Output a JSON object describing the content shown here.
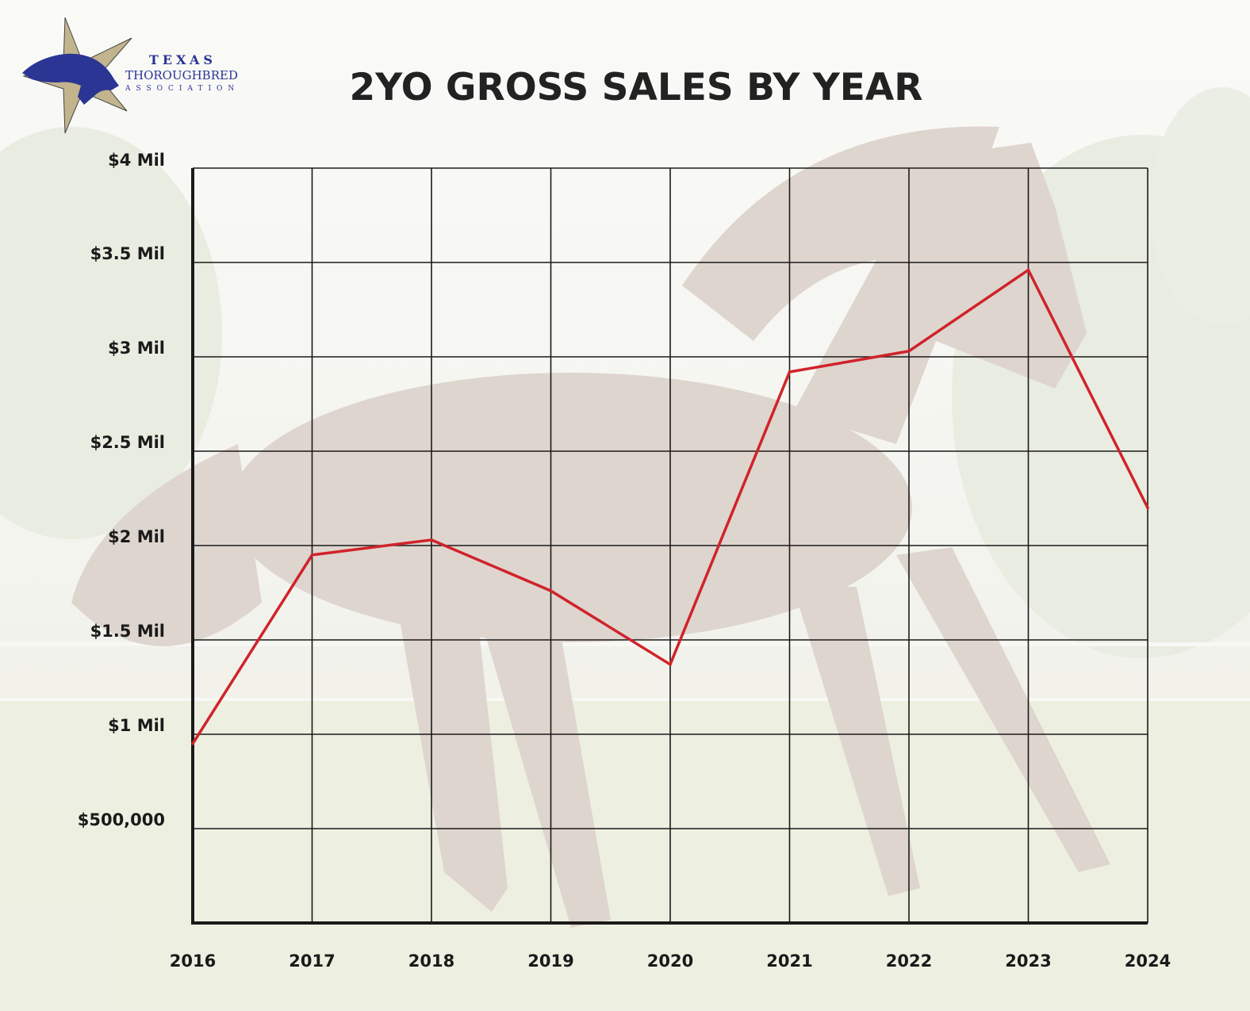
{
  "logo": {
    "line1": "TEXAS",
    "line2": "THOROUGHBRED",
    "line3": "ASSOCIATION",
    "color": "#2a3594",
    "star_color": "#c2b48c"
  },
  "colors": {
    "line": "#d0232a",
    "grid": "#1a1a1a",
    "background": "#ecebe3"
  },
  "chart_data": {
    "type": "line",
    "title": "2YO GROSS SALES BY YEAR",
    "xlabel": "",
    "ylabel": "",
    "categories": [
      "2016",
      "2017",
      "2018",
      "2019",
      "2020",
      "2021",
      "2022",
      "2023",
      "2024"
    ],
    "series": [
      {
        "values": [
          950000,
          1950000,
          2030000,
          1760000,
          1370000,
          2920000,
          3030000,
          3460000,
          2200000
        ]
      }
    ],
    "ylim": [
      0,
      4000000
    ],
    "yticks": [
      500000,
      1000000,
      1500000,
      2000000,
      2500000,
      3000000,
      3500000,
      4000000
    ],
    "ytick_labels": [
      "$500,000",
      "$1 Mil",
      "$1.5 Mil",
      "$2 Mil",
      "$2.5 Mil",
      "$3 Mil",
      "$3.5 Mil",
      "$4 Mil"
    ],
    "grid": true,
    "legend": "none"
  }
}
